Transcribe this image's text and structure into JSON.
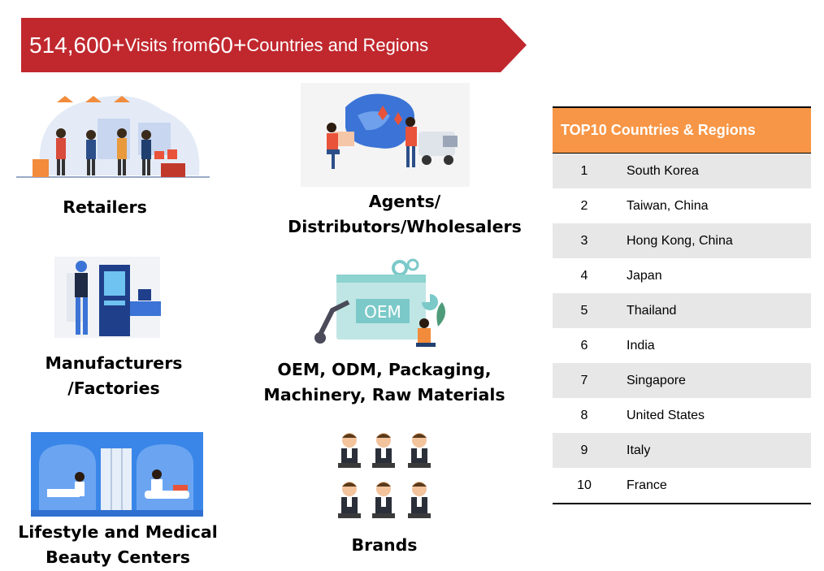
{
  "banner": {
    "visits": "514,600+",
    "visits_text": " Visits from ",
    "countries": "60+",
    "countries_text": " Countries and Regions"
  },
  "categories": {
    "retailers": "Retailers",
    "agents_line1": "Agents/",
    "agents_line2": "Distributors/Wholesalers",
    "manufacturers_line1": "Manufacturers",
    "manufacturers_line2": "/Factories",
    "oem_line1": "OEM, ODM, Packaging,",
    "oem_line2": "Machinery, Raw Materials",
    "lifestyle_line1": "Lifestyle and Medical",
    "lifestyle_line2": "Beauty Centers",
    "brands": "Brands",
    "oem_badge": "OEM"
  },
  "table": {
    "title": "TOP10 Countries & Regions",
    "rows": [
      {
        "rank": "1",
        "name": "South Korea"
      },
      {
        "rank": "2",
        "name": "Taiwan, China"
      },
      {
        "rank": "3",
        "name": "Hong Kong, China"
      },
      {
        "rank": "4",
        "name": "Japan"
      },
      {
        "rank": "5",
        "name": "Thailand"
      },
      {
        "rank": "6",
        "name": "India"
      },
      {
        "rank": "7",
        "name": "Singapore"
      },
      {
        "rank": "8",
        "name": "United States"
      },
      {
        "rank": "9",
        "name": "Italy"
      },
      {
        "rank": "10",
        "name": "France"
      }
    ]
  },
  "colors": {
    "banner": "#c0282e",
    "table_header": "#f79646",
    "row_shade": "#e7e7e7"
  }
}
